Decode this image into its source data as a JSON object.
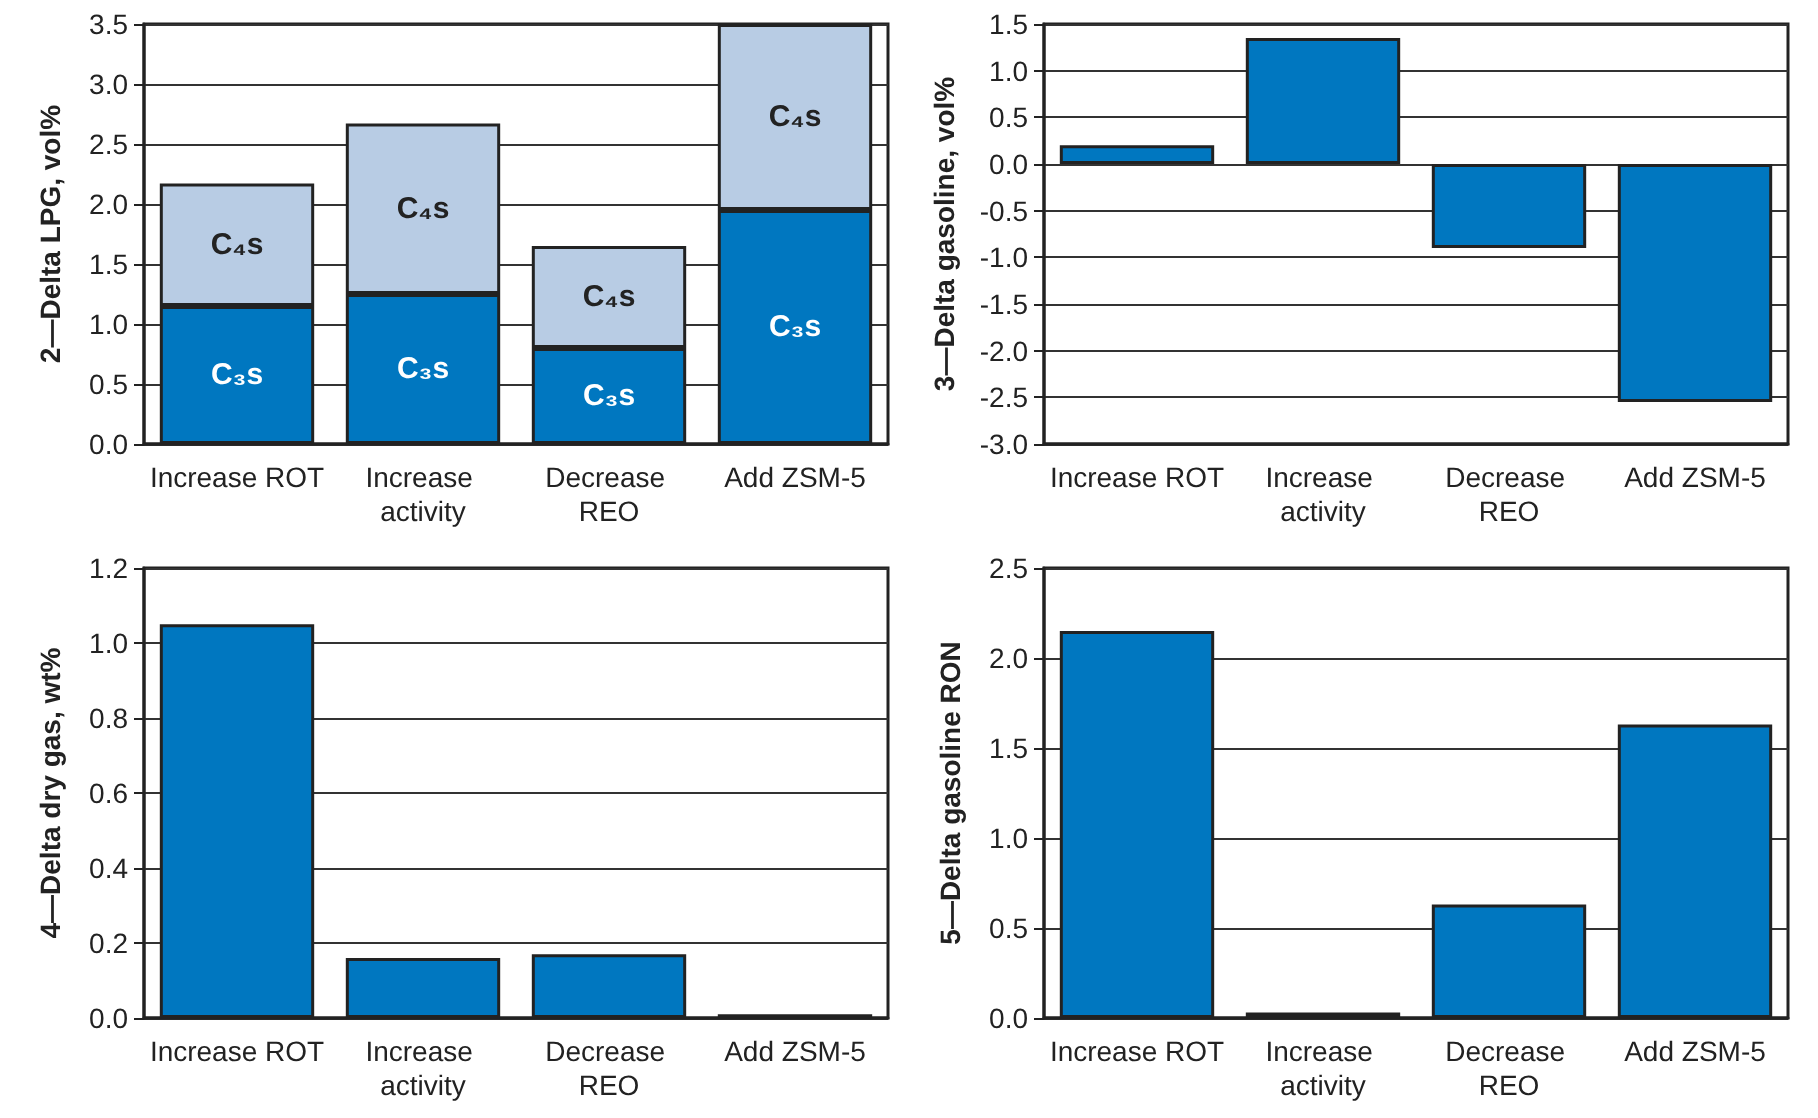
{
  "chart_data": [
    {
      "type": "bar",
      "stacked": true,
      "ylabel": "2—Delta LPG, vol%",
      "categories": [
        "Increase ROT",
        "Increase activity",
        "Decrease REO",
        "Add ZSM-5"
      ],
      "series": [
        {
          "name": "C₃s",
          "color": "#0077c0",
          "values": [
            1.15,
            1.25,
            0.8,
            1.95
          ]
        },
        {
          "name": "C₄s",
          "color": "#b8cce4",
          "values": [
            1.02,
            1.42,
            0.85,
            1.55
          ]
        }
      ],
      "ylim": [
        0,
        3.5
      ],
      "yticks": [
        {
          "value": 0,
          "label": "0.0"
        },
        0.5,
        {
          "value": 1,
          "label": "1.0"
        },
        1.5,
        {
          "value": 2,
          "label": "2.0"
        },
        2.5,
        {
          "value": 3,
          "label": "3.0"
        },
        3.5
      ],
      "grid": "y",
      "legend": false
    },
    {
      "type": "bar",
      "ylabel": "3—Delta gasoline, vol%",
      "categories": [
        "Increase ROT",
        "Increase activity",
        "Decrease REO",
        "Add ZSM-5"
      ],
      "series": [
        {
          "color": "#0077c0",
          "values": [
            0.2,
            1.35,
            -0.9,
            -2.55
          ]
        }
      ],
      "ylim": [
        -3,
        1.5
      ],
      "yticks": [
        {
          "value": -3,
          "label": "-3.0"
        },
        -2.5,
        {
          "value": -2,
          "label": "-2.0"
        },
        -1.5,
        {
          "value": -1,
          "label": "-1.0"
        },
        -0.5,
        {
          "value": 0,
          "label": "0.0"
        },
        0.5,
        {
          "value": 1,
          "label": "1.0"
        },
        1.5
      ],
      "grid": "y",
      "legend": false
    },
    {
      "type": "bar",
      "ylabel": "4—Delta dry gas, wt%",
      "categories": [
        "Increase ROT",
        "Increase activity",
        "Decrease REO",
        "Add ZSM-5"
      ],
      "series": [
        {
          "color": "#0077c0",
          "values": [
            1.05,
            0.16,
            0.17,
            0.01
          ]
        }
      ],
      "ylim": [
        0,
        1.2
      ],
      "yticks": [
        {
          "value": 0,
          "label": "0.0"
        },
        0.2,
        0.4,
        0.6,
        0.8,
        {
          "value": 1,
          "label": "1.0"
        },
        1.2
      ],
      "grid": "y",
      "legend": false
    },
    {
      "type": "bar",
      "ylabel": "5—Delta gasoline RON",
      "categories": [
        "Increase ROT",
        "Increase activity",
        "Decrease REO",
        "Add ZSM-5"
      ],
      "series": [
        {
          "color": "#0077c0",
          "values": [
            2.15,
            0.03,
            0.63,
            1.63
          ]
        }
      ],
      "ylim": [
        0,
        2.5
      ],
      "yticks": [
        {
          "value": 0,
          "label": "0.0"
        },
        0.5,
        {
          "value": 1,
          "label": "1.0"
        },
        1.5,
        {
          "value": 2,
          "label": "2.0"
        },
        2.5
      ],
      "grid": "y",
      "legend": false
    }
  ]
}
